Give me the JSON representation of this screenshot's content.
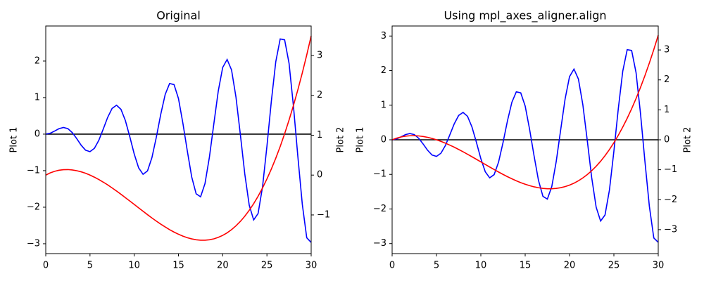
{
  "chart_data": [
    {
      "type": "line",
      "title": "Original",
      "ylabel": "Plot 1",
      "y2label": "Plot 2",
      "x": [
        0,
        0.5,
        1,
        1.5,
        2,
        2.5,
        3,
        3.5,
        4,
        4.5,
        5,
        5.5,
        6,
        6.5,
        7,
        7.5,
        8,
        8.5,
        9,
        9.5,
        10,
        10.5,
        11,
        11.5,
        12,
        12.5,
        13,
        13.5,
        14,
        14.5,
        15,
        15.5,
        16,
        16.5,
        17,
        17.5,
        18,
        18.5,
        19,
        19.5,
        20,
        20.5,
        21,
        21.5,
        22,
        22.5,
        23,
        23.5,
        24,
        24.5,
        25,
        25.5,
        26,
        26.5,
        27,
        27.5,
        28,
        28.5,
        29,
        29.5,
        30
      ],
      "series": [
        {
          "color": "#0000ff",
          "values": [
            0,
            0.024,
            0.084,
            0.15,
            0.182,
            0.15,
            0.042,
            -0.123,
            -0.303,
            -0.44,
            -0.479,
            -0.388,
            -0.168,
            0.14,
            0.46,
            0.704,
            0.792,
            0.679,
            0.371,
            -0.071,
            -0.544,
            -0.924,
            -1.1,
            -1.007,
            -0.644,
            -0.083,
            0.546,
            1.085,
            1.387,
            1.356,
            0.975,
            0.3,
            -0.461,
            -1.175,
            -1.634,
            -1.715,
            -1.352,
            -0.626,
            0.285,
            1.181,
            1.826,
            2.044,
            1.757,
            1.014,
            -0.02,
            -1.096,
            -1.946,
            -2.348,
            -2.173,
            -1.449,
            -0.331,
            0.905,
            1.983,
            2.606,
            2.582,
            1.94,
            0.759,
            -0.625,
            -1.924,
            -2.837,
            -2.964
          ]
        },
        {
          "color": "#ff0000",
          "axis": "y2",
          "values": [
            0,
            0.054,
            0.094,
            0.121,
            0.135,
            0.138,
            0.129,
            0.11,
            0.082,
            0.045,
            0,
            -0.053,
            -0.112,
            -0.177,
            -0.247,
            -0.322,
            -0.4,
            -0.482,
            -0.566,
            -0.651,
            -0.737,
            -0.823,
            -0.909,
            -0.993,
            -1.076,
            -1.155,
            -1.231,
            -1.302,
            -1.369,
            -1.43,
            -1.484,
            -1.531,
            -1.571,
            -1.601,
            -1.623,
            -1.634,
            -1.634,
            -1.623,
            -1.6,
            -1.563,
            -1.513,
            -1.449,
            -1.369,
            -1.273,
            -1.161,
            -1.031,
            -0.883,
            -0.717,
            -0.531,
            -0.324,
            -0.097,
            0.152,
            0.424,
            0.718,
            1.037,
            1.38,
            1.749,
            2.144,
            2.565,
            3.015,
            3.492
          ]
        }
      ],
      "hline": 0,
      "xlim": [
        0,
        30
      ],
      "xticks": [
        0,
        5,
        10,
        15,
        20,
        25,
        30
      ],
      "ylim": [
        -3.27,
        2.96
      ],
      "yticks": [
        {
          "value": -3,
          "label": "−3"
        },
        {
          "value": -2,
          "label": "−2"
        },
        {
          "value": -1,
          "label": "−1"
        },
        0,
        1,
        2
      ],
      "y2lim": [
        -1.97,
        3.74
      ],
      "y2ticks": [
        {
          "value": -1,
          "label": "−1"
        },
        0,
        1,
        2,
        3
      ]
    },
    {
      "type": "line",
      "title": "Using mpl_axes_aligner.align",
      "ylabel": "Plot 1",
      "y2label": "Plot 2",
      "x": [
        0,
        0.5,
        1,
        1.5,
        2,
        2.5,
        3,
        3.5,
        4,
        4.5,
        5,
        5.5,
        6,
        6.5,
        7,
        7.5,
        8,
        8.5,
        9,
        9.5,
        10,
        10.5,
        11,
        11.5,
        12,
        12.5,
        13,
        13.5,
        14,
        14.5,
        15,
        15.5,
        16,
        16.5,
        17,
        17.5,
        18,
        18.5,
        19,
        19.5,
        20,
        20.5,
        21,
        21.5,
        22,
        22.5,
        23,
        23.5,
        24,
        24.5,
        25,
        25.5,
        26,
        26.5,
        27,
        27.5,
        28,
        28.5,
        29,
        29.5,
        30
      ],
      "series": [
        {
          "color": "#0000ff",
          "values": [
            0,
            0.024,
            0.084,
            0.15,
            0.182,
            0.15,
            0.042,
            -0.123,
            -0.303,
            -0.44,
            -0.479,
            -0.388,
            -0.168,
            0.14,
            0.46,
            0.704,
            0.792,
            0.679,
            0.371,
            -0.071,
            -0.544,
            -0.924,
            -1.1,
            -1.007,
            -0.644,
            -0.083,
            0.546,
            1.085,
            1.387,
            1.356,
            0.975,
            0.3,
            -0.461,
            -1.175,
            -1.634,
            -1.715,
            -1.352,
            -0.626,
            0.285,
            1.181,
            1.826,
            2.044,
            1.757,
            1.014,
            -0.02,
            -1.096,
            -1.946,
            -2.348,
            -2.173,
            -1.449,
            -0.331,
            0.905,
            1.983,
            2.606,
            2.582,
            1.94,
            0.759,
            -0.625,
            -1.924,
            -2.837,
            -2.964
          ]
        },
        {
          "color": "#ff0000",
          "axis": "y2",
          "values": [
            0,
            0.054,
            0.094,
            0.121,
            0.135,
            0.138,
            0.129,
            0.11,
            0.082,
            0.045,
            0,
            -0.053,
            -0.112,
            -0.177,
            -0.247,
            -0.322,
            -0.4,
            -0.482,
            -0.566,
            -0.651,
            -0.737,
            -0.823,
            -0.909,
            -0.993,
            -1.076,
            -1.155,
            -1.231,
            -1.302,
            -1.369,
            -1.43,
            -1.484,
            -1.531,
            -1.571,
            -1.601,
            -1.623,
            -1.634,
            -1.634,
            -1.623,
            -1.6,
            -1.563,
            -1.513,
            -1.449,
            -1.369,
            -1.273,
            -1.161,
            -1.031,
            -0.883,
            -0.717,
            -0.531,
            -0.324,
            -0.097,
            0.152,
            0.424,
            0.718,
            1.037,
            1.38,
            1.749,
            2.144,
            2.565,
            3.015,
            3.492
          ]
        }
      ],
      "hline": 0,
      "xlim": [
        0,
        30
      ],
      "xticks": [
        0,
        5,
        10,
        15,
        20,
        25,
        30
      ],
      "ylim": [
        -3.29,
        3.29
      ],
      "yticks": [
        {
          "value": -3,
          "label": "−3"
        },
        {
          "value": -2,
          "label": "−2"
        },
        {
          "value": -1,
          "label": "−1"
        },
        0,
        1,
        2,
        3
      ],
      "y2lim": [
        -3.8,
        3.8
      ],
      "y2ticks": [
        {
          "value": -3,
          "label": "−3"
        },
        {
          "value": -2,
          "label": "−2"
        },
        {
          "value": -1,
          "label": "−1"
        },
        0,
        1,
        2,
        3
      ]
    }
  ]
}
